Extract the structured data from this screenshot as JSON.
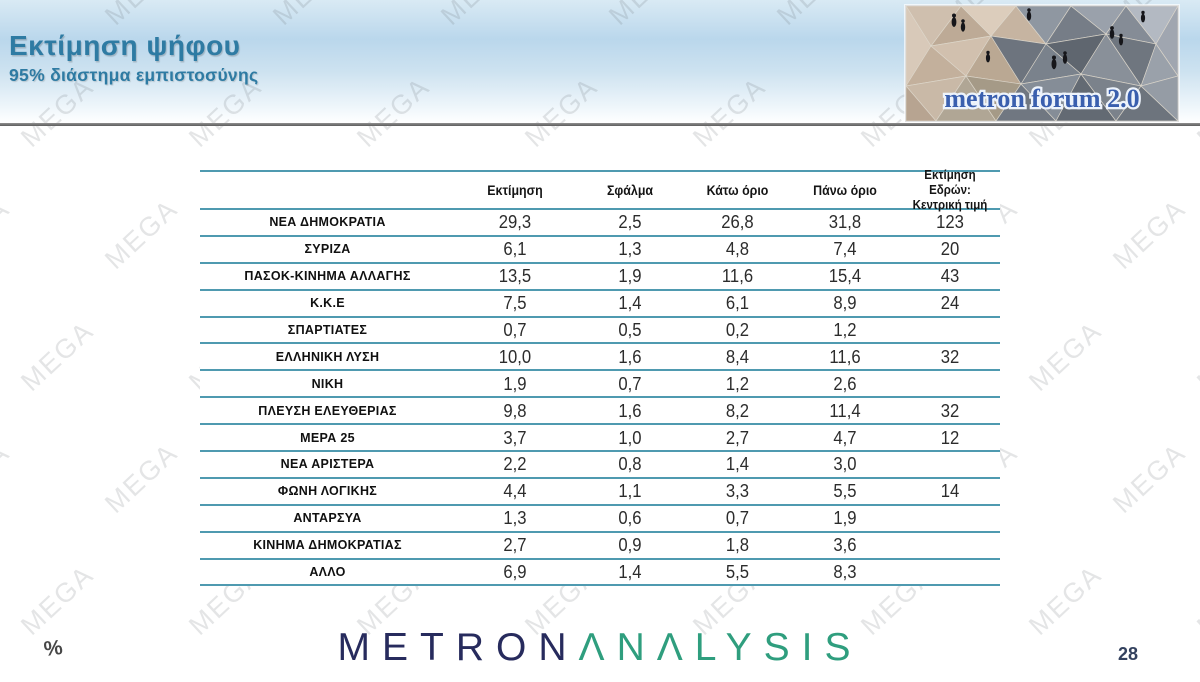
{
  "slide": {
    "title": "Εκτίμηση ψήφου",
    "subtitle": "95% διάστημα εμπιστοσύνης",
    "logo_text": "metron forum 2.0"
  },
  "watermark": {
    "text": "MEGA"
  },
  "table": {
    "headers": {
      "estimate": "Εκτίμηση",
      "error": "Σφάλμα",
      "lower": "Κάτω όριο",
      "upper": "Πάνω όριο",
      "seats_line1": "Εκτίμηση Εδρών:",
      "seats_line2": "Κεντρική τιμή"
    }
  },
  "chart_data": {
    "type": "table",
    "title": "Εκτίμηση ψήφου",
    "subtitle": "95% διάστημα εμπιστοσύνης",
    "columns": [
      "Εκτίμηση",
      "Σφάλμα",
      "Κάτω όριο",
      "Πάνω όριο",
      "Εκτίμηση Εδρών: Κεντρική τιμή"
    ],
    "rows": [
      {
        "party": "ΝΕΑ  ΔΗΜΟΚΡΑΤΙΑ",
        "estimate": 29.3,
        "error": 2.5,
        "lower": 26.8,
        "upper": 31.8,
        "seats": 123
      },
      {
        "party": "ΣΥΡΙΖΑ",
        "estimate": 6.1,
        "error": 1.3,
        "lower": 4.8,
        "upper": 7.4,
        "seats": 20
      },
      {
        "party": "ΠΑΣΟΚ-ΚΙΝΗΜΑ  ΑΛΛΑΓΗΣ",
        "estimate": 13.5,
        "error": 1.9,
        "lower": 11.6,
        "upper": 15.4,
        "seats": 43
      },
      {
        "party": "Κ.Κ.Ε",
        "estimate": 7.5,
        "error": 1.4,
        "lower": 6.1,
        "upper": 8.9,
        "seats": 24
      },
      {
        "party": "ΣΠΑΡΤΙΑΤΕΣ",
        "estimate": 0.7,
        "error": 0.5,
        "lower": 0.2,
        "upper": 1.2,
        "seats": null
      },
      {
        "party": "ΕΛΛΗΝΙΚΗ  ΛΥΣΗ",
        "estimate": 10.0,
        "error": 1.6,
        "lower": 8.4,
        "upper": 11.6,
        "seats": 32
      },
      {
        "party": "ΝΙΚΗ",
        "estimate": 1.9,
        "error": 0.7,
        "lower": 1.2,
        "upper": 2.6,
        "seats": null
      },
      {
        "party": "ΠΛΕΥΣΗ ΕΛΕΥΘΕΡΙΑΣ",
        "estimate": 9.8,
        "error": 1.6,
        "lower": 8.2,
        "upper": 11.4,
        "seats": 32
      },
      {
        "party": "ΜΕΡΑ 25",
        "estimate": 3.7,
        "error": 1.0,
        "lower": 2.7,
        "upper": 4.7,
        "seats": 12
      },
      {
        "party": "ΝΕΑ ΑΡΙΣΤΕΡΑ",
        "estimate": 2.2,
        "error": 0.8,
        "lower": 1.4,
        "upper": 3.0,
        "seats": null
      },
      {
        "party": "ΦΩΝΗ ΛΟΓΙΚΗΣ",
        "estimate": 4.4,
        "error": 1.1,
        "lower": 3.3,
        "upper": 5.5,
        "seats": 14
      },
      {
        "party": "ΑΝΤΑΡΣΥΑ",
        "estimate": 1.3,
        "error": 0.6,
        "lower": 0.7,
        "upper": 1.9,
        "seats": null
      },
      {
        "party": "ΚΙΝΗΜΑ ΔΗΜΟΚΡΑΤΙΑΣ",
        "estimate": 2.7,
        "error": 0.9,
        "lower": 1.8,
        "upper": 3.6,
        "seats": null
      },
      {
        "party": "ΑΛΛΟ",
        "estimate": 6.9,
        "error": 1.4,
        "lower": 5.5,
        "upper": 8.3,
        "seats": null
      }
    ]
  },
  "footer": {
    "brand_metron": "METRON",
    "brand_analysis": "ΛNΛLYSIS",
    "percent_label": "%",
    "page_number": "28"
  },
  "colors": {
    "table_line": "#4f9ab0",
    "title_teal": "#2e7ba3",
    "brand_navy": "#272b5d",
    "brand_green": "#2f9e7e",
    "logo_blue": "#3a5fae"
  }
}
